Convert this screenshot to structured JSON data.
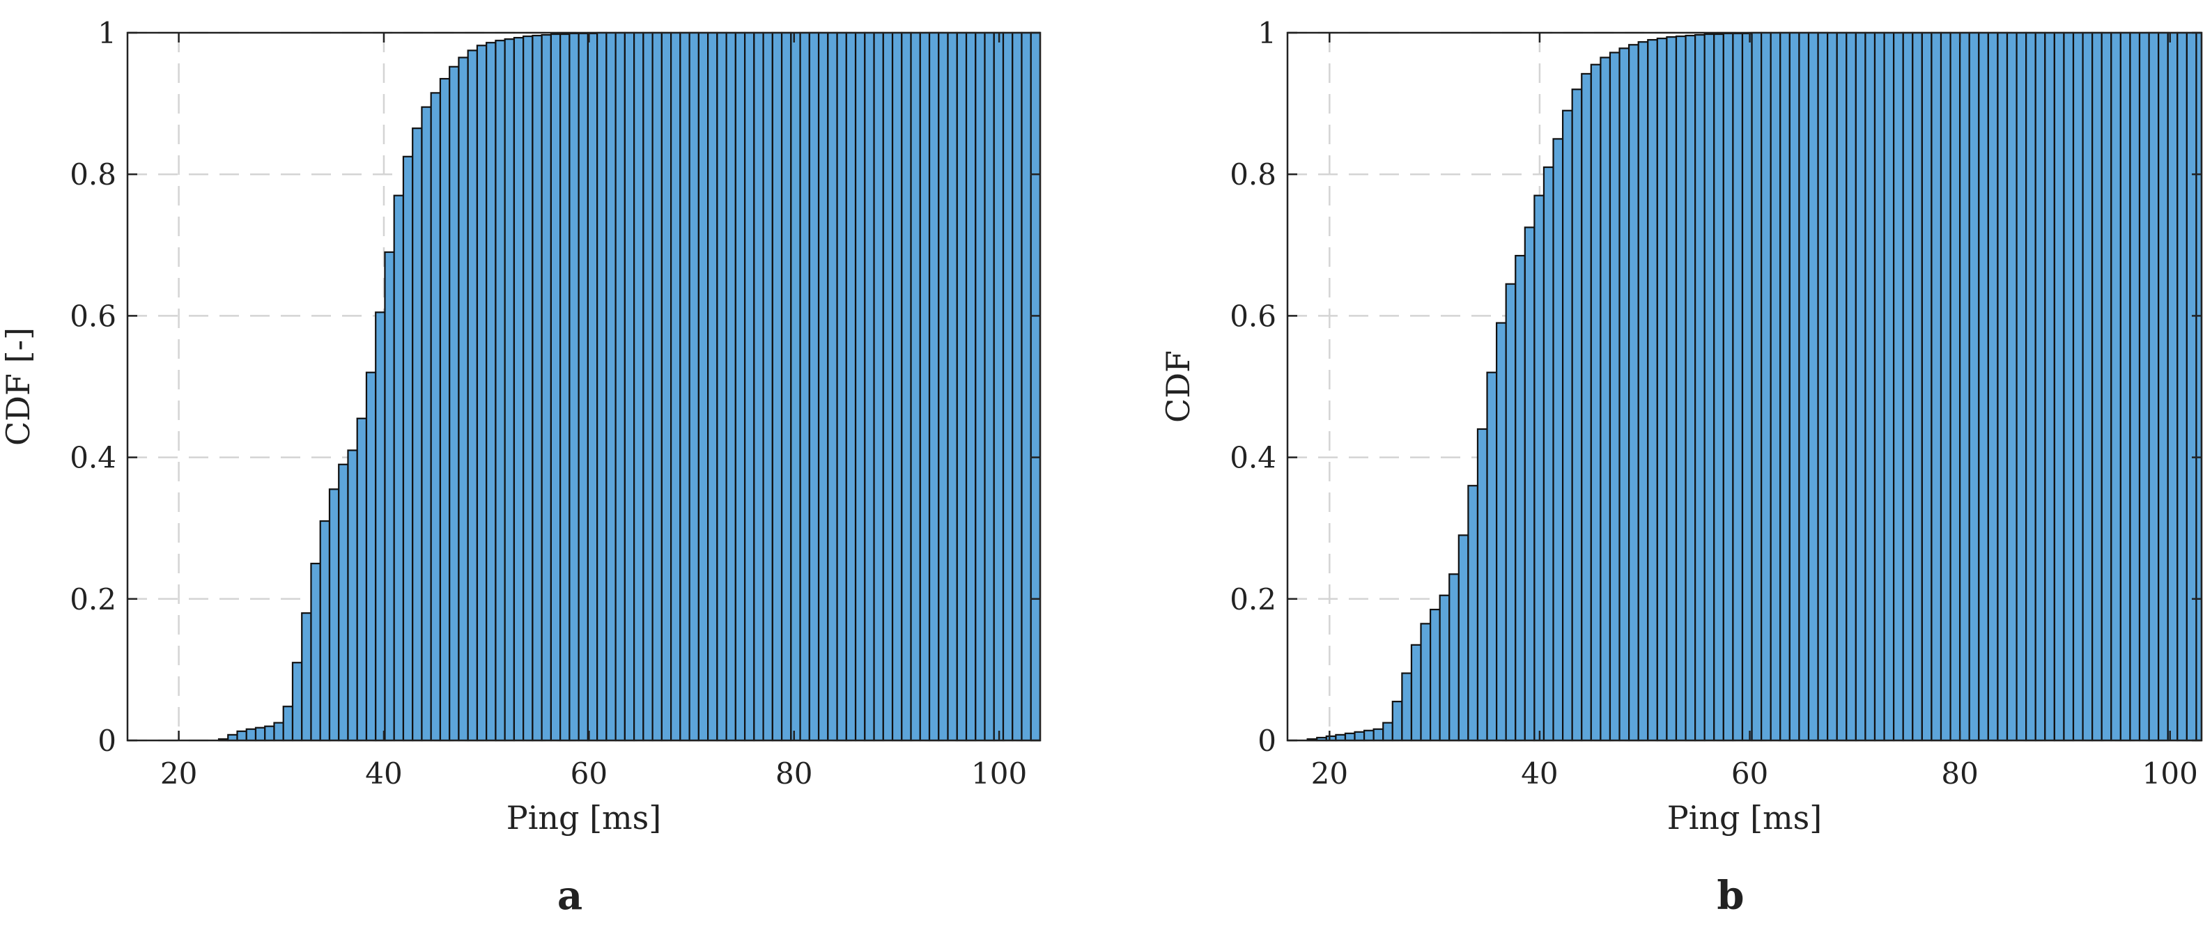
{
  "chart_data": [
    {
      "type": "bar",
      "subtype": "cumulative histogram",
      "panel_label": "a",
      "title": "",
      "xlabel": "Ping [ms]",
      "ylabel": "CDF [-]",
      "xlim": [
        15,
        104
      ],
      "ylim": [
        0,
        1
      ],
      "xticks": [
        "20",
        "40",
        "60",
        "80",
        "100"
      ],
      "yticks": [
        "0",
        "0.2",
        "0.4",
        "0.6",
        "0.8",
        "1"
      ],
      "grid": true,
      "bar_color": "#5da5da",
      "edge_color": "#111111",
      "bin_start": 23,
      "bin_width": 0.9,
      "values": [
        0.0,
        0.002,
        0.008,
        0.013,
        0.016,
        0.018,
        0.02,
        0.025,
        0.048,
        0.11,
        0.18,
        0.25,
        0.31,
        0.355,
        0.39,
        0.41,
        0.455,
        0.52,
        0.605,
        0.69,
        0.77,
        0.825,
        0.865,
        0.895,
        0.915,
        0.935,
        0.952,
        0.965,
        0.975,
        0.982,
        0.986,
        0.989,
        0.991,
        0.993,
        0.995,
        0.996,
        0.997,
        0.998,
        0.998,
        0.999,
        0.999,
        0.999,
        1.0,
        1.0,
        1.0,
        1.0,
        1.0,
        1.0,
        1.0,
        1.0,
        1.0,
        1.0,
        1.0,
        1.0,
        1.0,
        1.0,
        1.0,
        1.0,
        1.0,
        1.0,
        1.0,
        1.0,
        1.0,
        1.0,
        1.0,
        1.0,
        1.0,
        1.0,
        1.0,
        1.0,
        1.0,
        1.0,
        1.0,
        1.0,
        1.0,
        1.0,
        1.0,
        1.0,
        1.0,
        1.0,
        1.0,
        1.0,
        1.0,
        1.0,
        1.0,
        1.0,
        1.0,
        1.0,
        1.0,
        1.0
      ]
    },
    {
      "type": "bar",
      "subtype": "cumulative histogram",
      "panel_label": "b",
      "title": "",
      "xlabel": "Ping [ms]",
      "ylabel": "CDF",
      "xlim": [
        16,
        103
      ],
      "ylim": [
        0,
        1
      ],
      "xticks": [
        "20",
        "40",
        "60",
        "80",
        "100"
      ],
      "yticks": [
        "0",
        "0.2",
        "0.4",
        "0.6",
        "0.8",
        "1"
      ],
      "grid": true,
      "bar_color": "#5da5da",
      "edge_color": "#111111",
      "bin_start": 17,
      "bin_width": 0.9,
      "values": [
        0.0,
        0.002,
        0.004,
        0.006,
        0.008,
        0.01,
        0.012,
        0.014,
        0.016,
        0.025,
        0.055,
        0.095,
        0.135,
        0.165,
        0.185,
        0.205,
        0.235,
        0.29,
        0.36,
        0.44,
        0.52,
        0.59,
        0.645,
        0.685,
        0.725,
        0.77,
        0.81,
        0.85,
        0.89,
        0.92,
        0.942,
        0.955,
        0.965,
        0.972,
        0.978,
        0.983,
        0.987,
        0.99,
        0.992,
        0.994,
        0.995,
        0.996,
        0.997,
        0.998,
        0.998,
        0.999,
        0.999,
        0.999,
        1.0,
        1.0,
        1.0,
        1.0,
        1.0,
        1.0,
        1.0,
        1.0,
        1.0,
        1.0,
        1.0,
        1.0,
        1.0,
        1.0,
        1.0,
        1.0,
        1.0,
        1.0,
        1.0,
        1.0,
        1.0,
        1.0,
        1.0,
        1.0,
        1.0,
        1.0,
        1.0,
        1.0,
        1.0,
        1.0,
        1.0,
        1.0,
        1.0,
        1.0,
        1.0,
        1.0,
        1.0,
        1.0,
        1.0,
        1.0,
        1.0,
        1.0,
        1.0,
        1.0,
        1.0,
        1.0,
        1.0,
        1.0
      ]
    }
  ]
}
